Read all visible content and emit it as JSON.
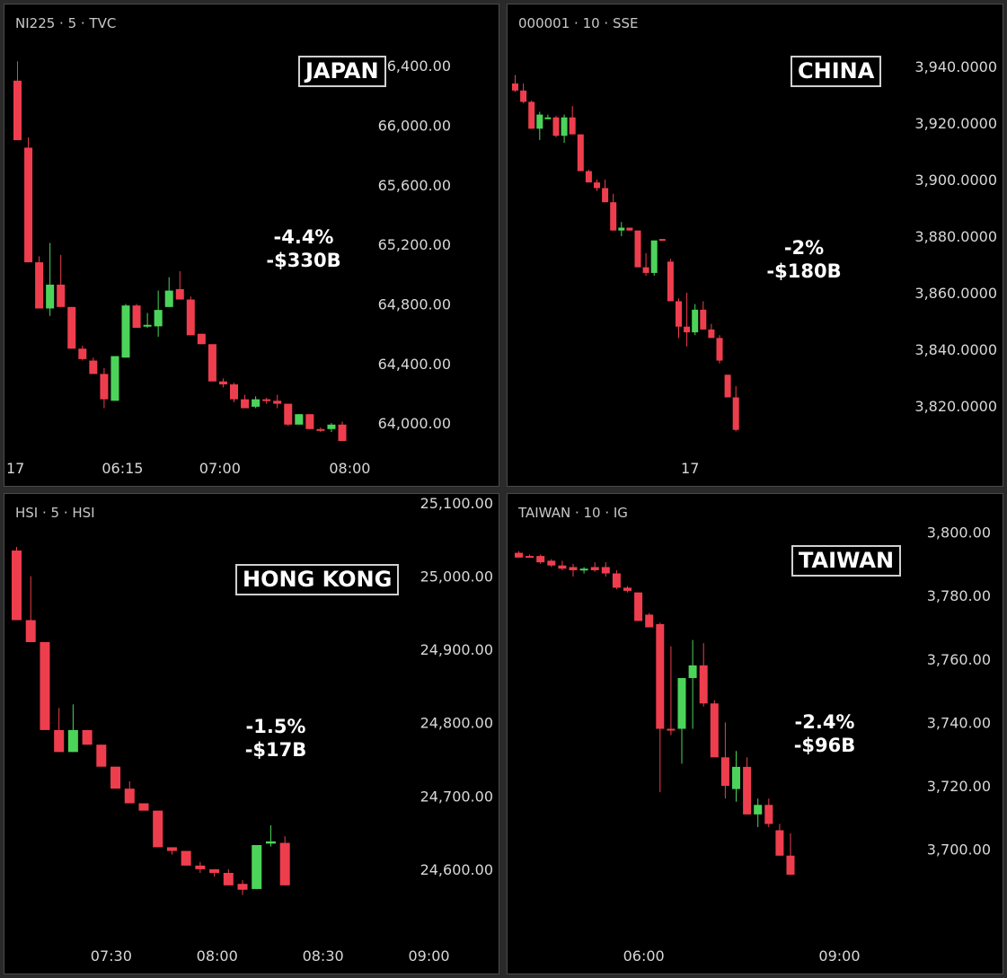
{
  "colors": {
    "up": "#4cd45a",
    "down": "#ee3e4e",
    "background": "#000000",
    "border": "#4a4a4a"
  },
  "chart_data": [
    {
      "type": "candlestick",
      "symbol": "NI225 · 5 · TVC",
      "country": "JAPAN",
      "change_pct": "-4.4%",
      "change_value": "-$330B",
      "ylim": [
        63850,
        66510
      ],
      "yticks": [
        {
          "value": 66400,
          "label": "66,400.00"
        },
        {
          "value": 66000,
          "label": "66,000.00"
        },
        {
          "value": 65600,
          "label": "65,600.00"
        },
        {
          "value": 65200,
          "label": "65,200.00"
        },
        {
          "value": 64800,
          "label": "64,800.00"
        },
        {
          "value": 64400,
          "label": "64,400.00"
        },
        {
          "value": 64000,
          "label": "64,000.00"
        }
      ],
      "xticks": [
        {
          "index": -0.5,
          "label": "17"
        },
        {
          "index": 9.7,
          "label": "06:15"
        },
        {
          "index": 18.7,
          "label": "07:00"
        },
        {
          "index": 30.7,
          "label": "08:00"
        }
      ],
      "candles": [
        {
          "o": 66300,
          "h": 66430,
          "l": 65900,
          "c": 65900
        },
        {
          "o": 65850,
          "h": 65920,
          "l": 65080,
          "c": 65080
        },
        {
          "o": 65080,
          "h": 65120,
          "l": 64770,
          "c": 64770
        },
        {
          "o": 64770,
          "h": 65210,
          "l": 64720,
          "c": 64930
        },
        {
          "o": 64930,
          "h": 65130,
          "l": 64780,
          "c": 64780
        },
        {
          "o": 64780,
          "h": 64780,
          "l": 64500,
          "c": 64500
        },
        {
          "o": 64500,
          "h": 64520,
          "l": 64420,
          "c": 64430
        },
        {
          "o": 64420,
          "h": 64440,
          "l": 64330,
          "c": 64330
        },
        {
          "o": 64330,
          "h": 64370,
          "l": 64100,
          "c": 64160
        },
        {
          "o": 64150,
          "h": 64450,
          "l": 64150,
          "c": 64450
        },
        {
          "o": 64440,
          "h": 64800,
          "l": 64440,
          "c": 64790
        },
        {
          "o": 64790,
          "h": 64800,
          "l": 64640,
          "c": 64640
        },
        {
          "o": 64650,
          "h": 64740,
          "l": 64640,
          "c": 64660
        },
        {
          "o": 64650,
          "h": 64890,
          "l": 64580,
          "c": 64760
        },
        {
          "o": 64780,
          "h": 64980,
          "l": 64780,
          "c": 64890
        },
        {
          "o": 64900,
          "h": 65020,
          "l": 64830,
          "c": 64830
        },
        {
          "o": 64830,
          "h": 64850,
          "l": 64590,
          "c": 64590
        },
        {
          "o": 64600,
          "h": 64600,
          "l": 64530,
          "c": 64530
        },
        {
          "o": 64530,
          "h": 64530,
          "l": 64280,
          "c": 64280
        },
        {
          "o": 64280,
          "h": 64300,
          "l": 64240,
          "c": 64260
        },
        {
          "o": 64260,
          "h": 64270,
          "l": 64140,
          "c": 64160
        },
        {
          "o": 64160,
          "h": 64190,
          "l": 64100,
          "c": 64100
        },
        {
          "o": 64110,
          "h": 64180,
          "l": 64100,
          "c": 64160
        },
        {
          "o": 64160,
          "h": 64170,
          "l": 64130,
          "c": 64150
        },
        {
          "o": 64150,
          "h": 64190,
          "l": 64100,
          "c": 64130
        },
        {
          "o": 64130,
          "h": 64130,
          "l": 63980,
          "c": 63990
        },
        {
          "o": 63990,
          "h": 64060,
          "l": 63990,
          "c": 64060
        },
        {
          "o": 64060,
          "h": 64060,
          "l": 63960,
          "c": 63960
        },
        {
          "o": 63960,
          "h": 63970,
          "l": 63940,
          "c": 63950
        },
        {
          "o": 63960,
          "h": 64000,
          "l": 63940,
          "c": 63990
        },
        {
          "o": 63990,
          "h": 64010,
          "l": 63880,
          "c": 63880
        }
      ]
    },
    {
      "type": "candlestick",
      "symbol": "000001 · 10 · SSE",
      "country": "CHINA",
      "change_pct": "-2%",
      "change_value": "-$180B",
      "ylim": [
        3806,
        3947
      ],
      "yticks": [
        {
          "value": 3940,
          "label": "3,940.0000"
        },
        {
          "value": 3920,
          "label": "3,920.0000"
        },
        {
          "value": 3900,
          "label": "3,900.0000"
        },
        {
          "value": 3880,
          "label": "3,880.0000"
        },
        {
          "value": 3860,
          "label": "3,860.0000"
        },
        {
          "value": 3840,
          "label": "3,840.0000"
        },
        {
          "value": 3820,
          "label": "3,820.0000"
        }
      ],
      "xticks": [
        {
          "index": 21.4,
          "label": "17"
        }
      ],
      "candles": [
        {
          "o": 3934.0,
          "h": 3937.0,
          "l": 3931.0,
          "c": 3931.5
        },
        {
          "o": 3931.5,
          "h": 3934.0,
          "l": 3927.0,
          "c": 3927.5
        },
        {
          "o": 3927.5,
          "h": 3928.0,
          "l": 3918.0,
          "c": 3918.0
        },
        {
          "o": 3918.0,
          "h": 3924.0,
          "l": 3914.0,
          "c": 3923.0
        },
        {
          "o": 3922.0,
          "h": 3923.0,
          "l": 3922.0,
          "c": 3922.0
        },
        {
          "o": 3922.0,
          "h": 3922.5,
          "l": 3915.0,
          "c": 3915.5
        },
        {
          "o": 3915.5,
          "h": 3923.0,
          "l": 3913.0,
          "c": 3922.0
        },
        {
          "o": 3922.0,
          "h": 3926.0,
          "l": 3916.0,
          "c": 3916.0
        },
        {
          "o": 3916.0,
          "h": 3916.0,
          "l": 3903.0,
          "c": 3903.0
        },
        {
          "o": 3903.0,
          "h": 3903.5,
          "l": 3899.0,
          "c": 3899.0
        },
        {
          "o": 3899.0,
          "h": 3900.0,
          "l": 3896.0,
          "c": 3897.0
        },
        {
          "o": 3897.0,
          "h": 3900.0,
          "l": 3892.0,
          "c": 3892.0
        },
        {
          "o": 3892.0,
          "h": 3895.0,
          "l": 3882.0,
          "c": 3882.0
        },
        {
          "o": 3882.0,
          "h": 3885.0,
          "l": 3880.0,
          "c": 3883.0
        },
        {
          "o": 3883.0,
          "h": 3883.0,
          "l": 3882.0,
          "c": 3882.0
        },
        {
          "o": 3882.0,
          "h": 3882.0,
          "l": 3869.0,
          "c": 3869.0
        },
        {
          "o": 3869.0,
          "h": 3874.0,
          "l": 3866.0,
          "c": 3867.0
        },
        {
          "o": 3867.0,
          "h": 3878.0,
          "l": 3866.0,
          "c": 3878.5
        },
        {
          "o": 3879.0,
          "h": 3879.0,
          "l": 3878.5,
          "c": 3878.5
        },
        {
          "o": 3871.0,
          "h": 3872.0,
          "l": 3857.0,
          "c": 3857.0
        },
        {
          "o": 3857.0,
          "h": 3858.0,
          "l": 3844.0,
          "c": 3848.0
        },
        {
          "o": 3848.0,
          "h": 3860.0,
          "l": 3841.0,
          "c": 3846.0
        },
        {
          "o": 3846.0,
          "h": 3856.0,
          "l": 3845.0,
          "c": 3854.0
        },
        {
          "o": 3854.0,
          "h": 3857.0,
          "l": 3847.0,
          "c": 3847.0
        },
        {
          "o": 3847.0,
          "h": 3849.0,
          "l": 3844.0,
          "c": 3844.0
        },
        {
          "o": 3844.0,
          "h": 3845.0,
          "l": 3835.0,
          "c": 3836.0
        },
        {
          "o": 3831.0,
          "h": 3831.0,
          "l": 3823.0,
          "c": 3823.0
        },
        {
          "o": 3823.0,
          "h": 3827.0,
          "l": 3811.0,
          "c": 3811.5
        }
      ]
    },
    {
      "type": "candlestick",
      "symbol": "HSI · 5 · HSI",
      "country": "HONG KONG",
      "change_pct": "-1.5%",
      "change_value": "-$17B",
      "ylim": [
        24530,
        25100
      ],
      "yticks": [
        {
          "value": 25100,
          "label": "25,100.00"
        },
        {
          "value": 25000,
          "label": "25,000.00"
        },
        {
          "value": 24900,
          "label": "24,900.00"
        },
        {
          "value": 24800,
          "label": "24,800.00"
        },
        {
          "value": 24700,
          "label": "24,700.00"
        },
        {
          "value": 24600,
          "label": "24,600.00"
        }
      ],
      "xticks": [
        {
          "index": 6.7,
          "label": "07:30"
        },
        {
          "index": 14.2,
          "label": "08:00"
        },
        {
          "index": 21.7,
          "label": "08:30"
        },
        {
          "index": 29.2,
          "label": "09:00"
        }
      ],
      "candles": [
        {
          "o": 25035,
          "h": 25040,
          "l": 24940,
          "c": 24940
        },
        {
          "o": 24940,
          "h": 25000,
          "l": 24910,
          "c": 24910
        },
        {
          "o": 24910,
          "h": 24910,
          "l": 24790,
          "c": 24790
        },
        {
          "o": 24790,
          "h": 24820,
          "l": 24760,
          "c": 24760
        },
        {
          "o": 24760,
          "h": 24825,
          "l": 24760,
          "c": 24790
        },
        {
          "o": 24790,
          "h": 24790,
          "l": 24770,
          "c": 24770
        },
        {
          "o": 24770,
          "h": 24770,
          "l": 24740,
          "c": 24740
        },
        {
          "o": 24740,
          "h": 24740,
          "l": 24710,
          "c": 24710
        },
        {
          "o": 24710,
          "h": 24720,
          "l": 24690,
          "c": 24690
        },
        {
          "o": 24690,
          "h": 24690,
          "l": 24680,
          "c": 24680
        },
        {
          "o": 24680,
          "h": 24680,
          "l": 24630,
          "c": 24630
        },
        {
          "o": 24630,
          "h": 24630,
          "l": 24620,
          "c": 24625
        },
        {
          "o": 24625,
          "h": 24625,
          "l": 24605,
          "c": 24605
        },
        {
          "o": 24605,
          "h": 24610,
          "l": 24595,
          "c": 24600
        },
        {
          "o": 24600,
          "h": 24600,
          "l": 24590,
          "c": 24595
        },
        {
          "o": 24595,
          "h": 24600,
          "l": 24578,
          "c": 24578
        },
        {
          "o": 24580,
          "h": 24585,
          "l": 24565,
          "c": 24572
        },
        {
          "o": 24573,
          "h": 24633,
          "l": 24573,
          "c": 24633
        },
        {
          "o": 24635,
          "h": 24660,
          "l": 24631,
          "c": 24638
        },
        {
          "o": 24636,
          "h": 24645,
          "l": 24578,
          "c": 24578
        }
      ]
    },
    {
      "type": "candlestick",
      "symbol": "TAIWAN · 10 · IG",
      "country": "TAIWAN",
      "change_pct": "-2.4%",
      "change_value": "-$96B",
      "ylim": [
        3690,
        3803
      ],
      "yticks": [
        {
          "value": 3800,
          "label": "3,800.00"
        },
        {
          "value": 3780,
          "label": "3,780.00"
        },
        {
          "value": 3760,
          "label": "3,760.00"
        },
        {
          "value": 3740,
          "label": "3,740.00"
        },
        {
          "value": 3720,
          "label": "3,720.00"
        },
        {
          "value": 3700,
          "label": "3,700.00"
        }
      ],
      "xticks": [
        {
          "index": 11.5,
          "label": "06:00"
        },
        {
          "index": 29.5,
          "label": "09:00"
        }
      ],
      "candles": [
        {
          "o": 3793.5,
          "h": 3794.0,
          "l": 3792.0,
          "c": 3792.0
        },
        {
          "o": 3792.5,
          "h": 3793.0,
          "l": 3792.0,
          "c": 3792.0
        },
        {
          "o": 3792.5,
          "h": 3793.0,
          "l": 3790.0,
          "c": 3790.5
        },
        {
          "o": 3791.0,
          "h": 3791.5,
          "l": 3789.0,
          "c": 3789.5
        },
        {
          "o": 3789.5,
          "h": 3791.0,
          "l": 3788.0,
          "c": 3788.5
        },
        {
          "o": 3789.0,
          "h": 3790.0,
          "l": 3786.0,
          "c": 3788.0
        },
        {
          "o": 3788.0,
          "h": 3789.0,
          "l": 3787.0,
          "c": 3788.5
        },
        {
          "o": 3789.0,
          "h": 3790.5,
          "l": 3787.5,
          "c": 3788.0
        },
        {
          "o": 3789.0,
          "h": 3790.5,
          "l": 3786.0,
          "c": 3787.0
        },
        {
          "o": 3787.0,
          "h": 3788.0,
          "l": 3782.0,
          "c": 3782.5
        },
        {
          "o": 3782.5,
          "h": 3783.0,
          "l": 3781.0,
          "c": 3781.5
        },
        {
          "o": 3781.0,
          "h": 3781.0,
          "l": 3772.0,
          "c": 3772.0
        },
        {
          "o": 3774.0,
          "h": 3774.5,
          "l": 3770.0,
          "c": 3770.0
        },
        {
          "o": 3771.0,
          "h": 3771.5,
          "l": 3718.0,
          "c": 3738.0
        },
        {
          "o": 3738.0,
          "h": 3764.0,
          "l": 3736.0,
          "c": 3737.5
        },
        {
          "o": 3738.0,
          "h": 3754.0,
          "l": 3727.0,
          "c": 3754.0
        },
        {
          "o": 3754.0,
          "h": 3766.0,
          "l": 3738.0,
          "c": 3758.0
        },
        {
          "o": 3758.0,
          "h": 3765.0,
          "l": 3745.0,
          "c": 3746.0
        },
        {
          "o": 3746.0,
          "h": 3747.0,
          "l": 3729.0,
          "c": 3729.0
        },
        {
          "o": 3729.0,
          "h": 3740.0,
          "l": 3716.0,
          "c": 3720.0
        },
        {
          "o": 3719.0,
          "h": 3731.0,
          "l": 3715.0,
          "c": 3726.0
        },
        {
          "o": 3726.0,
          "h": 3729.0,
          "l": 3711.0,
          "c": 3711.0
        },
        {
          "o": 3711.0,
          "h": 3716.0,
          "l": 3707.0,
          "c": 3714.0
        },
        {
          "o": 3714.0,
          "h": 3716.0,
          "l": 3707.0,
          "c": 3708.0
        },
        {
          "o": 3706.0,
          "h": 3708.0,
          "l": 3698.0,
          "c": 3698.0
        },
        {
          "o": 3698.0,
          "h": 3705.0,
          "l": 3692.0,
          "c": 3692.0
        }
      ]
    }
  ]
}
